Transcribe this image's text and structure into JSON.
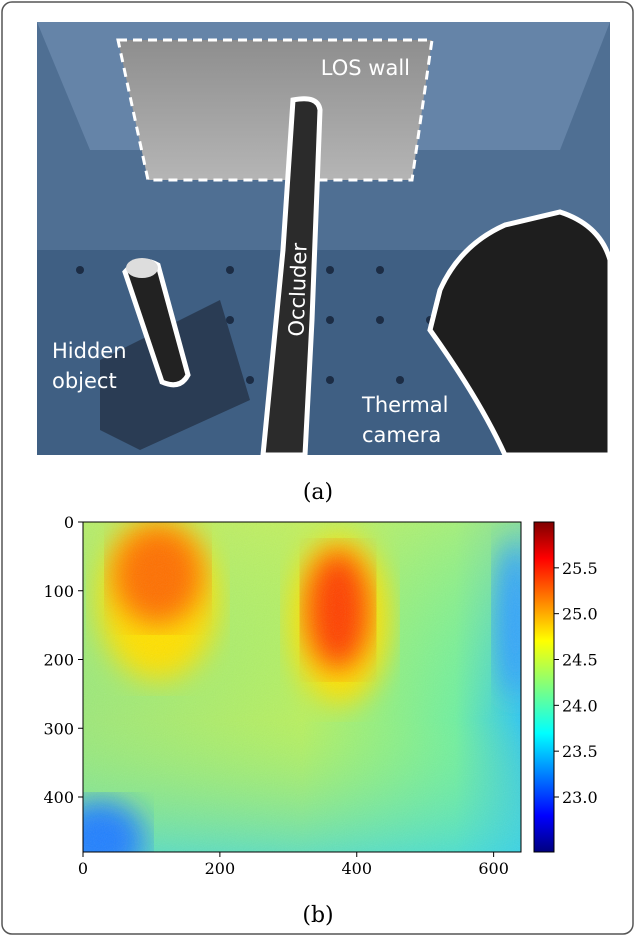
{
  "panel_a": {
    "caption": "(a)",
    "los_wall": "LOS wall",
    "occluder": "Occluder",
    "hidden_object": [
      "Hidden",
      "object"
    ],
    "thermal_camera": [
      "Thermal",
      "camera"
    ]
  },
  "chart_data": {
    "type": "heatmap",
    "caption": "(b)",
    "xlim": [
      0,
      640
    ],
    "xticks": [
      0,
      200,
      400,
      600
    ],
    "ylim": [
      480,
      0
    ],
    "yticks": [
      0,
      100,
      200,
      300,
      400
    ],
    "colormap": "jet",
    "colorbar": {
      "lim": [
        22.4,
        26.0
      ],
      "ticks": [
        {
          "value": 23,
          "label": "23.0"
        },
        {
          "value": 23.5,
          "label": "23.5"
        },
        {
          "value": 24,
          "label": "24.0"
        },
        {
          "value": 24.5,
          "label": "24.5"
        },
        {
          "value": 25,
          "label": "25.0"
        },
        {
          "value": 25.5,
          "label": "25.5"
        }
      ]
    }
  }
}
